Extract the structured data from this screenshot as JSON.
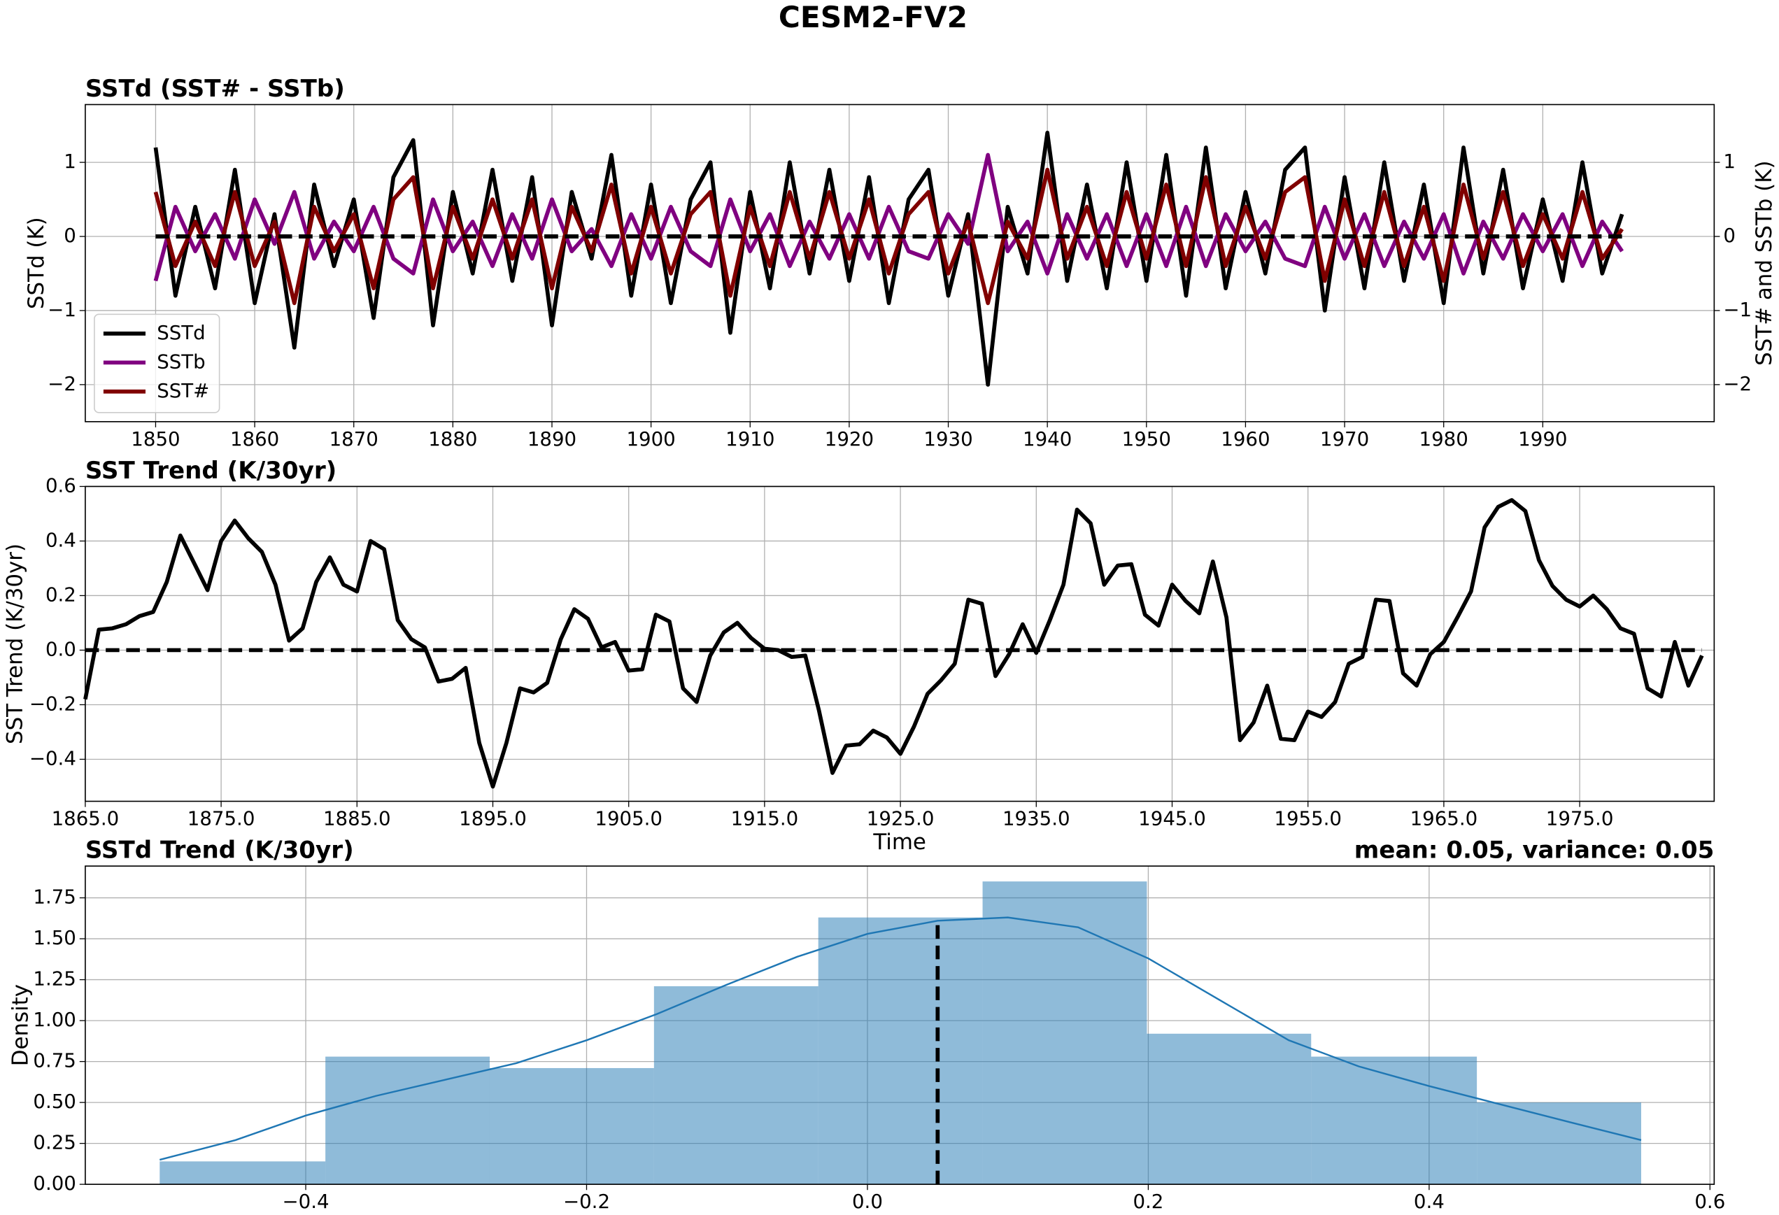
{
  "title": "CESM2-FV2",
  "chart_data": [
    {
      "type": "line",
      "title": "SSTd (SST# - SSTb)",
      "ylabel": "SSTd (K)",
      "y2label": "SST# and SSTb (K)",
      "x": [
        1850,
        1852,
        1854,
        1856,
        1858,
        1860,
        1862,
        1864,
        1866,
        1868,
        1870,
        1872,
        1874,
        1876,
        1878,
        1880,
        1882,
        1884,
        1886,
        1888,
        1890,
        1892,
        1894,
        1896,
        1898,
        1900,
        1902,
        1904,
        1906,
        1908,
        1910,
        1912,
        1914,
        1916,
        1918,
        1920,
        1922,
        1924,
        1926,
        1928,
        1930,
        1932,
        1934,
        1936,
        1938,
        1940,
        1942,
        1944,
        1946,
        1948,
        1950,
        1952,
        1954,
        1956,
        1958,
        1960,
        1962,
        1964,
        1966,
        1968,
        1970,
        1972,
        1974,
        1976,
        1978,
        1980,
        1982,
        1984,
        1986,
        1988,
        1990,
        1992,
        1994,
        1996,
        1998
      ],
      "series": [
        {
          "name": "SSTd",
          "color": "#000000",
          "values": [
            1.2,
            -0.8,
            0.4,
            -0.7,
            0.9,
            -0.9,
            0.3,
            -1.5,
            0.7,
            -0.4,
            0.5,
            -1.1,
            0.8,
            1.3,
            -1.2,
            0.6,
            -0.5,
            0.9,
            -0.6,
            0.8,
            -1.2,
            0.6,
            -0.3,
            1.1,
            -0.8,
            0.7,
            -0.9,
            0.5,
            1.0,
            -1.3,
            0.6,
            -0.7,
            1.0,
            -0.5,
            0.9,
            -0.6,
            0.8,
            -0.9,
            0.5,
            0.9,
            -0.8,
            0.3,
            -2.0,
            0.4,
            -0.5,
            1.4,
            -0.6,
            0.7,
            -0.7,
            1.0,
            -0.6,
            1.1,
            -0.8,
            1.2,
            -0.7,
            0.6,
            -0.5,
            0.9,
            1.2,
            -1.0,
            0.8,
            -0.7,
            1.0,
            -0.6,
            0.7,
            -0.9,
            1.2,
            -0.5,
            0.9,
            -0.7,
            0.5,
            -0.6,
            1.0,
            -0.5,
            0.3
          ]
        },
        {
          "name": "SSTb",
          "color": "#800080",
          "axis": "y2",
          "values": [
            -0.6,
            0.4,
            -0.2,
            0.3,
            -0.3,
            0.5,
            -0.1,
            0.6,
            -0.3,
            0.2,
            -0.2,
            0.4,
            -0.3,
            -0.5,
            0.5,
            -0.2,
            0.2,
            -0.4,
            0.3,
            -0.3,
            0.5,
            -0.2,
            0.1,
            -0.4,
            0.3,
            -0.3,
            0.4,
            -0.2,
            -0.4,
            0.5,
            -0.2,
            0.3,
            -0.4,
            0.2,
            -0.3,
            0.3,
            -0.3,
            0.4,
            -0.2,
            -0.3,
            0.3,
            -0.1,
            1.1,
            -0.2,
            0.2,
            -0.5,
            0.3,
            -0.3,
            0.3,
            -0.4,
            0.3,
            -0.4,
            0.4,
            -0.4,
            0.3,
            -0.2,
            0.2,
            -0.3,
            -0.4,
            0.4,
            -0.3,
            0.3,
            -0.4,
            0.2,
            -0.3,
            0.3,
            -0.5,
            0.2,
            -0.3,
            0.3,
            -0.2,
            0.3,
            -0.4,
            0.2,
            -0.2
          ]
        },
        {
          "name": "SST#",
          "color": "#800000",
          "axis": "y2",
          "values": [
            0.6,
            -0.4,
            0.2,
            -0.4,
            0.6,
            -0.4,
            0.2,
            -0.9,
            0.4,
            -0.2,
            0.3,
            -0.7,
            0.5,
            0.8,
            -0.7,
            0.4,
            -0.3,
            0.5,
            -0.3,
            0.5,
            -0.7,
            0.4,
            -0.2,
            0.7,
            -0.5,
            0.4,
            -0.5,
            0.3,
            0.6,
            -0.8,
            0.4,
            -0.4,
            0.6,
            -0.3,
            0.6,
            -0.3,
            0.5,
            -0.5,
            0.3,
            0.6,
            -0.5,
            0.2,
            -0.9,
            0.2,
            -0.3,
            0.9,
            -0.3,
            0.4,
            -0.4,
            0.6,
            -0.3,
            0.7,
            -0.4,
            0.8,
            -0.4,
            0.4,
            -0.3,
            0.6,
            0.8,
            -0.6,
            0.5,
            -0.4,
            0.6,
            -0.4,
            0.4,
            -0.6,
            0.7,
            -0.3,
            0.6,
            -0.4,
            0.3,
            -0.3,
            0.6,
            -0.3,
            0.1
          ]
        }
      ],
      "xlim": [
        1842.9,
        2007.3
      ],
      "xticks": [
        1850,
        1860,
        1870,
        1880,
        1890,
        1900,
        1910,
        1920,
        1930,
        1940,
        1950,
        1960,
        1970,
        1980,
        1990
      ],
      "ylim": [
        -2.5,
        1.78
      ],
      "yticks": [
        {
          "value": -2,
          "label": "−2"
        },
        {
          "value": -1,
          "label": "−1"
        },
        0,
        1
      ],
      "y2lim": [
        -2.5,
        1.78
      ],
      "y2ticks": [
        {
          "value": -2,
          "label": "−2"
        },
        {
          "value": -1,
          "label": "−1"
        },
        0,
        1
      ],
      "hline": 0,
      "grid": true,
      "legend": "lower left"
    },
    {
      "type": "line",
      "title": "SST Trend (K/30yr)",
      "ylabel": "SST Trend (K/30yr)",
      "xlabel": "Time",
      "x": [
        1865,
        1866,
        1867,
        1868,
        1869,
        1870,
        1871,
        1872,
        1873,
        1874,
        1875,
        1876,
        1877,
        1878,
        1879,
        1880,
        1881,
        1882,
        1883,
        1884,
        1885,
        1886,
        1887,
        1888,
        1889,
        1890,
        1891,
        1892,
        1893,
        1894,
        1895,
        1896,
        1897,
        1898,
        1899,
        1900,
        1901,
        1902,
        1903,
        1904,
        1905,
        1906,
        1907,
        1908,
        1909,
        1910,
        1911,
        1912,
        1913,
        1914,
        1915,
        1916,
        1917,
        1918,
        1919,
        1920,
        1921,
        1922,
        1923,
        1924,
        1925,
        1926,
        1927,
        1928,
        1929,
        1930,
        1931,
        1932,
        1933,
        1934,
        1935,
        1936,
        1937,
        1938,
        1939,
        1940,
        1941,
        1942,
        1943,
        1944,
        1945,
        1946,
        1947,
        1948,
        1949,
        1950,
        1951,
        1952,
        1953,
        1954,
        1955,
        1956,
        1957,
        1958,
        1959,
        1960,
        1961,
        1962,
        1963,
        1964,
        1965,
        1966,
        1967,
        1968,
        1969,
        1970,
        1971,
        1972,
        1973,
        1974,
        1975,
        1976,
        1977,
        1978,
        1979,
        1980,
        1981,
        1982,
        1983,
        1984
      ],
      "color": "#000000",
      "values": [
        -0.18,
        0.075,
        0.08,
        0.095,
        0.125,
        0.14,
        0.25,
        0.42,
        0.32,
        0.22,
        0.4,
        0.475,
        0.41,
        0.36,
        0.24,
        0.035,
        0.08,
        0.25,
        0.34,
        0.24,
        0.215,
        0.4,
        0.37,
        0.11,
        0.04,
        0.01,
        -0.115,
        -0.105,
        -0.065,
        -0.34,
        -0.5,
        -0.34,
        -0.14,
        -0.155,
        -0.12,
        0.04,
        0.15,
        0.115,
        0.01,
        0.03,
        -0.075,
        -0.07,
        0.13,
        0.105,
        -0.14,
        -0.19,
        -0.02,
        0.065,
        0.1,
        0.045,
        0.005,
        0.0,
        -0.025,
        -0.02,
        -0.22,
        -0.45,
        -0.35,
        -0.345,
        -0.295,
        -0.32,
        -0.38,
        -0.28,
        -0.16,
        -0.11,
        -0.05,
        0.185,
        0.17,
        -0.095,
        -0.015,
        0.095,
        -0.01,
        0.11,
        0.24,
        0.515,
        0.465,
        0.24,
        0.31,
        0.315,
        0.13,
        0.09,
        0.24,
        0.18,
        0.135,
        0.325,
        0.12,
        -0.33,
        -0.265,
        -0.13,
        -0.325,
        -0.33,
        -0.225,
        -0.245,
        -0.19,
        -0.05,
        -0.025,
        0.185,
        0.18,
        -0.085,
        -0.13,
        -0.015,
        0.03,
        0.12,
        0.215,
        0.45,
        0.525,
        0.55,
        0.51,
        0.33,
        0.235,
        0.185,
        0.16,
        0.2,
        0.15,
        0.08,
        0.06,
        -0.14,
        -0.17,
        0.03,
        -0.13,
        -0.02
      ],
      "xlim": [
        1865,
        1984.9
      ],
      "xticks": [
        {
          "value": 1865,
          "label": "1865.0"
        },
        {
          "value": 1875,
          "label": "1875.0"
        },
        {
          "value": 1885,
          "label": "1885.0"
        },
        {
          "value": 1895,
          "label": "1895.0"
        },
        {
          "value": 1905,
          "label": "1905.0"
        },
        {
          "value": 1915,
          "label": "1915.0"
        },
        {
          "value": 1925,
          "label": "1925.0"
        },
        {
          "value": 1935,
          "label": "1935.0"
        },
        {
          "value": 1945,
          "label": "1945.0"
        },
        {
          "value": 1955,
          "label": "1955.0"
        },
        {
          "value": 1965,
          "label": "1965.0"
        },
        {
          "value": 1975,
          "label": "1975.0"
        }
      ],
      "ylim": [
        -0.554,
        0.6
      ],
      "yticks": [
        {
          "value": -0.4,
          "label": "−0.4"
        },
        {
          "value": -0.2,
          "label": "−0.2"
        },
        {
          "value": 0,
          "label": "0.0"
        },
        0.2,
        0.4,
        0.6
      ],
      "hline": 0,
      "grid": true
    },
    {
      "type": "histogram",
      "title": "SSTd Trend (K/30yr)",
      "annotation": "mean: 0.05, variance: 0.05",
      "ylabel": "Density",
      "bins": [
        -0.504,
        -0.386,
        -0.269,
        -0.152,
        -0.035,
        0.082,
        0.199,
        0.316,
        0.434,
        0.551
      ],
      "values": [
        0.14,
        0.78,
        0.71,
        1.21,
        1.63,
        1.85,
        0.92,
        0.78,
        0.5
      ],
      "color": "#1f77b4",
      "alpha": 0.5,
      "kde": {
        "color": "#1f77b4",
        "x": [
          -0.504,
          -0.45,
          -0.4,
          -0.35,
          -0.3,
          -0.25,
          -0.2,
          -0.15,
          -0.1,
          -0.05,
          0,
          0.05,
          0.1,
          0.15,
          0.2,
          0.25,
          0.3,
          0.35,
          0.4,
          0.45,
          0.5,
          0.551
        ],
        "y": [
          0.15,
          0.27,
          0.42,
          0.54,
          0.64,
          0.74,
          0.88,
          1.04,
          1.22,
          1.39,
          1.53,
          1.61,
          1.63,
          1.57,
          1.38,
          1.13,
          0.88,
          0.72,
          0.6,
          0.49,
          0.38,
          0.27
        ]
      },
      "mean_line": 0.05,
      "xlim": [
        -0.557,
        0.603
      ],
      "xticks": [
        {
          "value": -0.4,
          "label": "−0.4"
        },
        {
          "value": -0.2,
          "label": "−0.2"
        },
        {
          "value": 0,
          "label": "0.0"
        },
        0.2,
        0.4,
        0.6
      ],
      "ylim": [
        0,
        1.944
      ],
      "yticks": [
        {
          "value": 0,
          "label": "0.00"
        },
        {
          "value": 0.25,
          "label": "0.25"
        },
        {
          "value": 0.5,
          "label": "0.50"
        },
        {
          "value": 0.75,
          "label": "0.75"
        },
        {
          "value": 1,
          "label": "1.00"
        },
        {
          "value": 1.25,
          "label": "1.25"
        },
        {
          "value": 1.5,
          "label": "1.50"
        },
        {
          "value": 1.75,
          "label": "1.75"
        }
      ],
      "grid": true
    }
  ]
}
